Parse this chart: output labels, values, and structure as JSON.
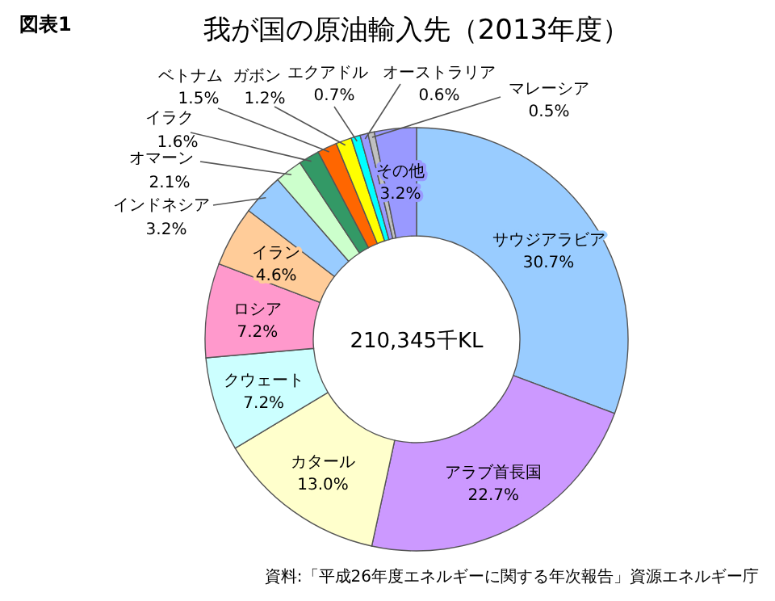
{
  "chart_data": {
    "type": "donut",
    "title": "我が国の原油輸入先（2013年度）",
    "categories": [
      "サウジアラビア",
      "アラブ首長国",
      "カタール",
      "クウェート",
      "ロシア",
      "イラン",
      "インドネシア",
      "オマーン",
      "イラク",
      "ベトナム",
      "ガボン",
      "エクアドル",
      "オーストラリア",
      "マレーシア",
      "その他"
    ],
    "values": [
      30.7,
      22.7,
      13.0,
      7.2,
      7.2,
      4.6,
      3.2,
      2.1,
      1.6,
      1.5,
      1.2,
      0.7,
      0.6,
      0.5,
      3.2
    ],
    "value_labels": [
      "30.7%",
      "22.7%",
      "13.0%",
      "7.2%",
      "7.2%",
      "4.6%",
      "3.2%",
      "2.1%",
      "1.6%",
      "1.5%",
      "1.2%",
      "0.7%",
      "0.6%",
      "0.5%",
      "3.2%"
    ],
    "colors": [
      "#99ccff",
      "#cc99ff",
      "#ffffcc",
      "#ccffff",
      "#ff99cc",
      "#ffcc99",
      "#99ccff",
      "#ccffcc",
      "#339966",
      "#ff6600",
      "#ffff00",
      "#00ffff",
      "#9999ff",
      "#c0c0c0",
      "#9999ff"
    ],
    "annotations": [
      "図表1",
      "210,345千KL",
      "資料:「平成26年度エネルギーに関する年次報告」資源エネルギー庁"
    ]
  }
}
